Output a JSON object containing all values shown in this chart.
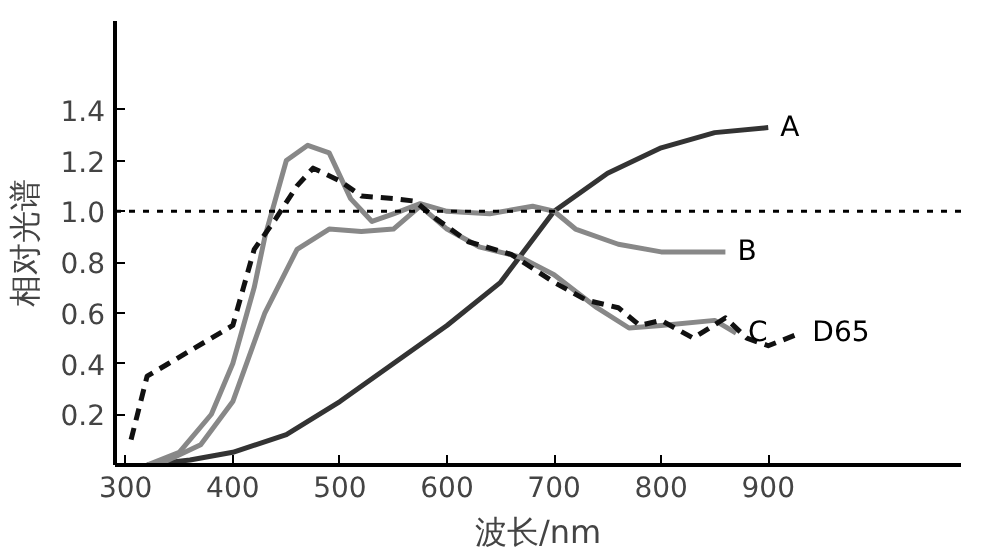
{
  "chart_data": {
    "type": "line",
    "xlabel": "波长/nm",
    "ylabel": "相对光谱",
    "xlim": [
      290,
      1080
    ],
    "ylim": [
      0,
      1.75
    ],
    "xticks": [
      300,
      400,
      500,
      600,
      700,
      800,
      900
    ],
    "yticks": [
      0.2,
      0.4,
      0.6,
      0.8,
      {
        "value": 1,
        "label": "1.0"
      },
      1.2,
      1.4
    ],
    "grid": false,
    "marker": "none",
    "series": [
      {
        "name": "A",
        "color": "#333333",
        "line_style": "solid",
        "x": [
          320,
          360,
          400,
          450,
          500,
          550,
          600,
          650,
          700,
          750,
          800,
          850,
          900
        ],
        "values": [
          0,
          0.02,
          0.05,
          0.12,
          0.25,
          0.4,
          0.55,
          0.72,
          1.0,
          1.15,
          1.25,
          1.31,
          1.33
        ]
      },
      {
        "name": "B",
        "color": "#888888",
        "line_style": "solid",
        "x": [
          320,
          350,
          380,
          400,
          420,
          430,
          450,
          470,
          490,
          510,
          530,
          550,
          575,
          600,
          640,
          680,
          700,
          720,
          760,
          800,
          860
        ],
        "values": [
          0,
          0.05,
          0.2,
          0.4,
          0.7,
          0.9,
          1.2,
          1.26,
          1.23,
          1.05,
          0.96,
          0.99,
          1.03,
          1.0,
          0.99,
          1.02,
          1.0,
          0.93,
          0.87,
          0.84,
          0.84
        ]
      },
      {
        "name": "C",
        "color": "#888888",
        "line_style": "solid",
        "x": [
          330,
          370,
          400,
          430,
          460,
          490,
          520,
          550,
          575,
          600,
          630,
          668,
          700,
          740,
          770,
          800,
          850,
          870
        ],
        "values": [
          0,
          0.08,
          0.25,
          0.6,
          0.85,
          0.93,
          0.92,
          0.93,
          1.02,
          0.93,
          0.86,
          0.82,
          0.75,
          0.62,
          0.54,
          0.55,
          0.57,
          0.52
        ]
      },
      {
        "name": "D65",
        "color": "#111111",
        "line_style": "dashed",
        "x": [
          305,
          320,
          340,
          360,
          380,
          400,
          410,
          420,
          440,
          460,
          475,
          500,
          520,
          550,
          570,
          590,
          620,
          660,
          700,
          730,
          760,
          780,
          800,
          830,
          860,
          880,
          900,
          930
        ],
        "values": [
          0.1,
          0.35,
          0.4,
          0.45,
          0.5,
          0.55,
          0.7,
          0.85,
          0.97,
          1.1,
          1.17,
          1.12,
          1.06,
          1.05,
          1.04,
          0.97,
          0.88,
          0.83,
          0.72,
          0.65,
          0.62,
          0.55,
          0.57,
          0.5,
          0.58,
          0.5,
          0.47,
          0.52
        ]
      }
    ],
    "ref_lines": [
      {
        "axis": "y",
        "value": 1.0,
        "label": null,
        "line_style": "dotted",
        "color": "#000000"
      }
    ]
  }
}
